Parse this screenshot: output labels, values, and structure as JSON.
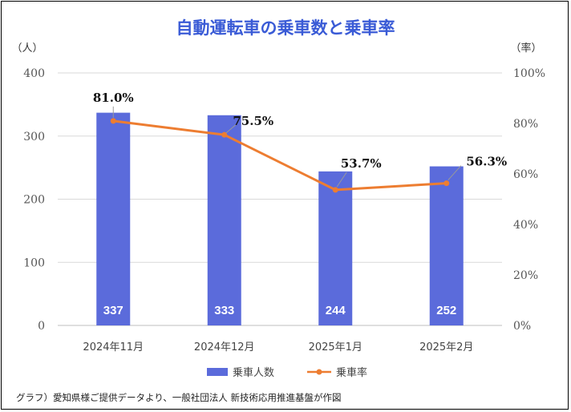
{
  "chart_data": {
    "type": "bar",
    "title": "自動運転車の乗車数と乗車率",
    "y_left_unit": "（人）",
    "y_right_unit": "（率）",
    "categories": [
      "2024年11月",
      "2024年12月",
      "2025年1月",
      "2025年2月"
    ],
    "y_left_ticks": [
      "0",
      "100",
      "200",
      "300",
      "400"
    ],
    "y_right_ticks": [
      "0%",
      "20%",
      "40%",
      "60%",
      "80%",
      "100%"
    ],
    "ylim_left": [
      0,
      400
    ],
    "ylim_right": [
      0,
      100
    ],
    "series": [
      {
        "name": "乗車人数",
        "type": "bar",
        "axis": "left",
        "values": [
          337,
          333,
          244,
          252
        ],
        "labels": [
          "337",
          "333",
          "244",
          "252"
        ],
        "color": "#5b6bdb"
      },
      {
        "name": "乗車率",
        "type": "line",
        "axis": "right",
        "values": [
          81.0,
          75.5,
          53.7,
          56.3
        ],
        "labels": [
          "81.0%",
          "75.5%",
          "53.7%",
          "56.3%"
        ],
        "color": "#ed7d31"
      }
    ],
    "grid": true,
    "legend_position": "bottom",
    "source": "グラフ）愛知県様ご提供データより、一般社団法人 新技術応用推進基盤が作図"
  }
}
